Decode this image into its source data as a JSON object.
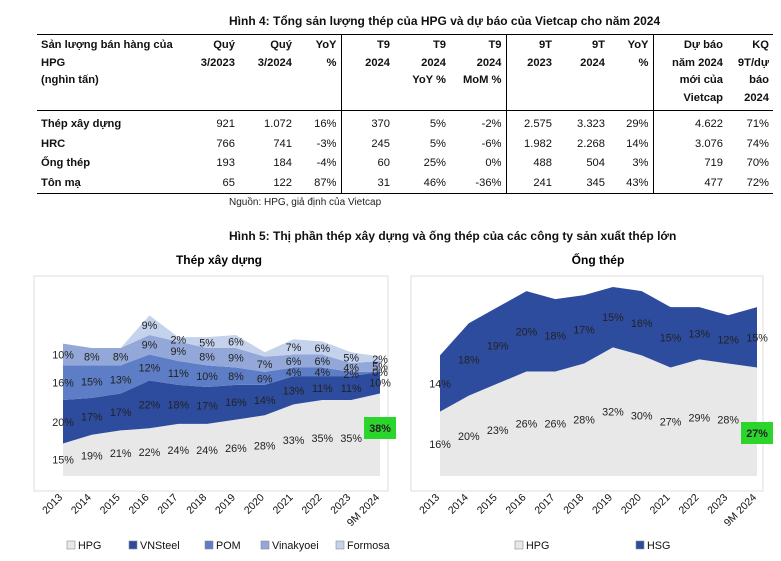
{
  "fig4_title": "Hình 4: Tổng sản lượng thép của HPG và dự báo của Vietcap cho năm 2024",
  "table": {
    "headers": [
      [
        "Sản lượng bán hàng của",
        "HPG",
        "(nghìn tấn)"
      ],
      [
        "Quý",
        "3/2023"
      ],
      [
        "Quý",
        "3/2024"
      ],
      [
        "YoY",
        "%"
      ],
      [
        "T9",
        "2024"
      ],
      [
        "T9",
        "2024",
        "YoY %"
      ],
      [
        "T9",
        "2024",
        "MoM %"
      ],
      [
        "9T",
        "2023"
      ],
      [
        "9T",
        "2024"
      ],
      [
        "YoY",
        "%"
      ],
      [
        "Dự báo",
        "năm 2024",
        "mới của",
        "Vietcap"
      ],
      [
        "KQ",
        "9T/dự",
        "báo",
        "2024"
      ]
    ],
    "rows": [
      [
        "Thép xây dựng",
        "921",
        "1.072",
        "16%",
        "370",
        "5%",
        "-2%",
        "2.575",
        "3.323",
        "29%",
        "4.622",
        "71%"
      ],
      [
        "HRC",
        "766",
        "741",
        "-3%",
        "245",
        "5%",
        "-6%",
        "1.982",
        "2.268",
        "14%",
        "3.076",
        "74%"
      ],
      [
        "Ống thép",
        "193",
        "184",
        "-4%",
        "60",
        "25%",
        "0%",
        "488",
        "504",
        "3%",
        "719",
        "70%"
      ],
      [
        "Tôn mạ",
        "65",
        "122",
        "87%",
        "31",
        "46%",
        "-36%",
        "241",
        "345",
        "43%",
        "477",
        "72%"
      ]
    ]
  },
  "source": "Nguồn: HPG, giả định của Vietcap",
  "fig5_title": "Hình 5: Thị phần thép xây dựng và ống thép của các công ty sản xuất thép lớn",
  "chart_data": [
    {
      "type": "area",
      "stacked": true,
      "title": "Thép xây dựng",
      "categories": [
        "2013",
        "2014",
        "2015",
        "2016",
        "2017",
        "2018",
        "2019",
        "2020",
        "2021",
        "2022",
        "2023",
        "9M 2024"
      ],
      "series": [
        {
          "name": "HPG",
          "color": "#e8e8e8",
          "values": [
            15,
            19,
            21,
            22,
            24,
            24,
            26,
            28,
            33,
            35,
            35,
            38
          ],
          "labels": [
            "15%",
            "19%",
            "21%",
            "22%",
            "24%",
            "24%",
            "26%",
            "28%",
            "33%",
            "35%",
            "35%",
            "38%"
          ]
        },
        {
          "name": "VNSteel",
          "color": "#2e4c9e",
          "values": [
            20,
            17,
            17,
            22,
            18,
            17,
            16,
            14,
            13,
            11,
            11,
            10
          ],
          "labels": [
            "20%",
            "17%",
            "17%",
            "22%",
            "18%",
            "17%",
            "16%",
            "14%",
            "13%",
            "11%",
            "11%",
            "10%"
          ]
        },
        {
          "name": "POM",
          "color": "#5d7dc6",
          "values": [
            16,
            15,
            13,
            12,
            11,
            10,
            8,
            6,
            4,
            4,
            2,
            0
          ],
          "labels": [
            "16%",
            "15%",
            "13%",
            "12%",
            "11%",
            "10%",
            "8%",
            "6%",
            "4%",
            "4%",
            "2%",
            "0%"
          ]
        },
        {
          "name": "Vinakyoei",
          "color": "#93a8d8",
          "values": [
            10,
            8,
            8,
            9,
            9,
            8,
            9,
            7,
            6,
            6,
            4,
            5
          ],
          "labels": [
            "10%",
            "8%",
            "8%",
            "9%",
            "9%",
            "8%",
            "9%",
            "7%",
            "6%",
            "6%",
            "4%",
            "5%"
          ]
        },
        {
          "name": "Formosa",
          "color": "#c5d2ec",
          "values": [
            0,
            0,
            0,
            9,
            2,
            5,
            6,
            2,
            7,
            6,
            5,
            2
          ],
          "labels": [
            "",
            "",
            "",
            "9%",
            "2%",
            "5%",
            "6%",
            "",
            "7%",
            "6%",
            "5%",
            "2%"
          ]
        }
      ],
      "highlight_label": "38%"
    },
    {
      "type": "area",
      "stacked": true,
      "title": "Ống thép",
      "categories": [
        "2013",
        "2014",
        "2015",
        "2016",
        "2017",
        "2018",
        "2019",
        "2020",
        "2021",
        "2022",
        "2023",
        "9M 2024"
      ],
      "series": [
        {
          "name": "HPG",
          "color": "#e8e8e8",
          "values": [
            16,
            20,
            23,
            26,
            26,
            28,
            32,
            30,
            27,
            29,
            28,
            27
          ],
          "labels": [
            "16%",
            "20%",
            "23%",
            "26%",
            "26%",
            "28%",
            "32%",
            "30%",
            "27%",
            "29%",
            "28%",
            "27%"
          ]
        },
        {
          "name": "HSG",
          "color": "#2e4c9e",
          "values": [
            14,
            18,
            19,
            20,
            18,
            17,
            15,
            16,
            15,
            13,
            12,
            15
          ],
          "labels": [
            "14%",
            "18%",
            "19%",
            "20%",
            "18%",
            "17%",
            "15%",
            "16%",
            "15%",
            "13%",
            "12%",
            "15%"
          ]
        }
      ],
      "highlight_label": "27%"
    }
  ]
}
